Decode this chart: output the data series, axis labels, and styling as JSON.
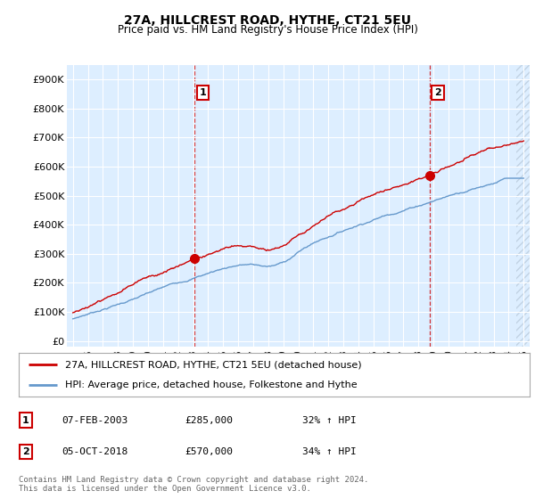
{
  "title": "27A, HILLCREST ROAD, HYTHE, CT21 5EU",
  "subtitle": "Price paid vs. HM Land Registry's House Price Index (HPI)",
  "yticks": [
    0,
    100000,
    200000,
    300000,
    400000,
    500000,
    600000,
    700000,
    800000,
    900000
  ],
  "ytick_labels": [
    "£0",
    "£100K",
    "£200K",
    "£300K",
    "£400K",
    "£500K",
    "£600K",
    "£700K",
    "£800K",
    "£900K"
  ],
  "ylim": [
    -20000,
    950000
  ],
  "hpi_color": "#6699cc",
  "price_color": "#cc0000",
  "purchase1_date_x": 2003.1,
  "purchase1_y": 285000,
  "purchase1_label": "1",
  "purchase2_date_x": 2018.75,
  "purchase2_y": 570000,
  "purchase2_label": "2",
  "vline1_x": 2003.1,
  "vline2_x": 2018.75,
  "legend_label_price": "27A, HILLCREST ROAD, HYTHE, CT21 5EU (detached house)",
  "legend_label_hpi": "HPI: Average price, detached house, Folkestone and Hythe",
  "table_rows": [
    {
      "num": "1",
      "date": "07-FEB-2003",
      "price": "£285,000",
      "hpi": "32% ↑ HPI"
    },
    {
      "num": "2",
      "date": "05-OCT-2018",
      "price": "£570,000",
      "hpi": "34% ↑ HPI"
    }
  ],
  "footer": "Contains HM Land Registry data © Crown copyright and database right 2024.\nThis data is licensed under the Open Government Licence v3.0.",
  "plot_bg_color": "#ddeeff",
  "fig_bg_color": "#ffffff",
  "hatch_color": "#bbccdd",
  "xlim_left": 1994.6,
  "xlim_right": 2025.4,
  "hatch_start": 2024.5
}
